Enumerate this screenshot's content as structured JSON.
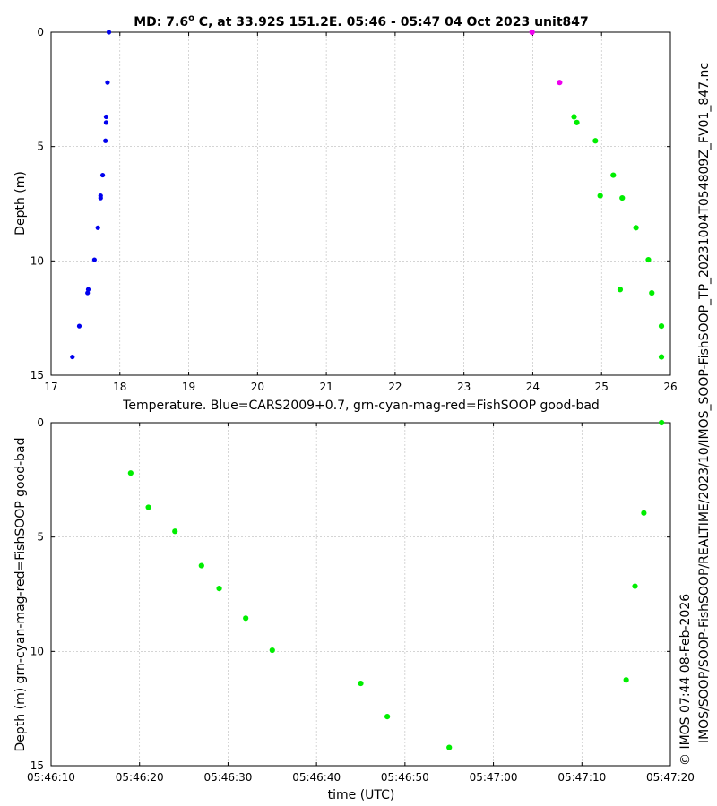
{
  "chart_data": [
    {
      "id": "temperature-profile",
      "type": "scatter",
      "title": "MD: 7.6° C, at 33.92S 151.2E. 05:46 - 05:47 04 Oct 2023 unit847",
      "title_main": "MD: 7.6",
      "title_sup": "o",
      "title_rest": " C, at 33.92S 151.2E. 05:46 - 05:47 04 Oct 2023 unit847",
      "xlabel": "Temperature. Blue=CARS2009+0.7, grn-cyan-mag-red=FishSOOP good-bad",
      "ylabel": "Depth (m)",
      "xlim": [
        17,
        26
      ],
      "ylim": [
        0,
        15
      ],
      "y_inverted": true,
      "grid": true,
      "xticks": [
        17,
        18,
        19,
        20,
        21,
        22,
        23,
        24,
        25,
        26
      ],
      "xtick_labels": [
        "17",
        "18",
        "19",
        "20",
        "21",
        "22",
        "23",
        "24",
        "25",
        "26"
      ],
      "yticks": [
        0,
        5,
        10,
        15
      ],
      "ytick_labels": [
        "0",
        "5",
        "10",
        "15"
      ],
      "series": [
        {
          "name": "CARS2009+0.7",
          "color": "#0000ee",
          "points": [
            {
              "x": 17.84,
              "y": 0.0
            },
            {
              "x": 17.82,
              "y": 2.2
            },
            {
              "x": 17.8,
              "y": 3.7
            },
            {
              "x": 17.8,
              "y": 3.95
            },
            {
              "x": 17.79,
              "y": 4.75
            },
            {
              "x": 17.75,
              "y": 6.25
            },
            {
              "x": 17.72,
              "y": 7.15
            },
            {
              "x": 17.72,
              "y": 7.25
            },
            {
              "x": 17.68,
              "y": 8.55
            },
            {
              "x": 17.63,
              "y": 9.95
            },
            {
              "x": 17.54,
              "y": 11.25
            },
            {
              "x": 17.53,
              "y": 11.4
            },
            {
              "x": 17.41,
              "y": 12.85
            },
            {
              "x": 17.31,
              "y": 14.2
            }
          ]
        },
        {
          "name": "FishSOOP magenta",
          "color": "#ee00ee",
          "points": [
            {
              "x": 23.99,
              "y": 0.0
            },
            {
              "x": 24.39,
              "y": 2.2
            }
          ]
        },
        {
          "name": "FishSOOP green",
          "color": "#00ee00",
          "points": [
            {
              "x": 24.6,
              "y": 3.7
            },
            {
              "x": 24.64,
              "y": 3.95
            },
            {
              "x": 24.91,
              "y": 4.75
            },
            {
              "x": 25.17,
              "y": 6.25
            },
            {
              "x": 24.98,
              "y": 7.15
            },
            {
              "x": 25.3,
              "y": 7.25
            },
            {
              "x": 25.5,
              "y": 8.55
            },
            {
              "x": 25.68,
              "y": 9.95
            },
            {
              "x": 25.27,
              "y": 11.25
            },
            {
              "x": 25.73,
              "y": 11.4
            },
            {
              "x": 25.87,
              "y": 12.85
            },
            {
              "x": 25.87,
              "y": 14.2
            }
          ]
        }
      ]
    },
    {
      "id": "depth-time",
      "type": "scatter",
      "title": "",
      "xlabel": "time (UTC)",
      "ylabel": "Depth (m) grn-cyan-mag-red=FishSOOP good-bad",
      "xlim_seconds": [
        10,
        80
      ],
      "ylim": [
        0,
        15
      ],
      "y_inverted": true,
      "grid": true,
      "xticks_seconds": [
        10,
        20,
        30,
        40,
        50,
        60,
        70,
        80
      ],
      "xtick_labels": [
        "05:46:10",
        "05:46:20",
        "05:46:30",
        "05:46:40",
        "05:46:50",
        "05:47:00",
        "05:47:10",
        "05:47:20"
      ],
      "yticks": [
        0,
        5,
        10,
        15
      ],
      "ytick_labels": [
        "0",
        "5",
        "10",
        "15"
      ],
      "series": [
        {
          "name": "FishSOOP green",
          "color": "#00ee00",
          "points": [
            {
              "x": 19.0,
              "y": 2.2
            },
            {
              "x": 21.0,
              "y": 3.7
            },
            {
              "x": 24.0,
              "y": 4.75
            },
            {
              "x": 27.0,
              "y": 6.25
            },
            {
              "x": 29.0,
              "y": 7.25
            },
            {
              "x": 32.0,
              "y": 8.55
            },
            {
              "x": 35.0,
              "y": 9.95
            },
            {
              "x": 45.0,
              "y": 11.4
            },
            {
              "x": 48.0,
              "y": 12.85
            },
            {
              "x": 55.0,
              "y": 14.2
            },
            {
              "x": 75.0,
              "y": 11.25
            },
            {
              "x": 76.0,
              "y": 7.15
            },
            {
              "x": 77.0,
              "y": 3.95
            },
            {
              "x": 79.0,
              "y": 0.0
            }
          ]
        }
      ]
    }
  ],
  "side_text": {
    "file_path": "IMOS/SOOP/SOOP-FishSOOP/REALTIME/2023/10/IMOS_SOOP-FishSOOP_TP_20231004T054809Z_FV01_847.nc",
    "credit": "© IMOS 07:44 08-Feb-2026"
  }
}
